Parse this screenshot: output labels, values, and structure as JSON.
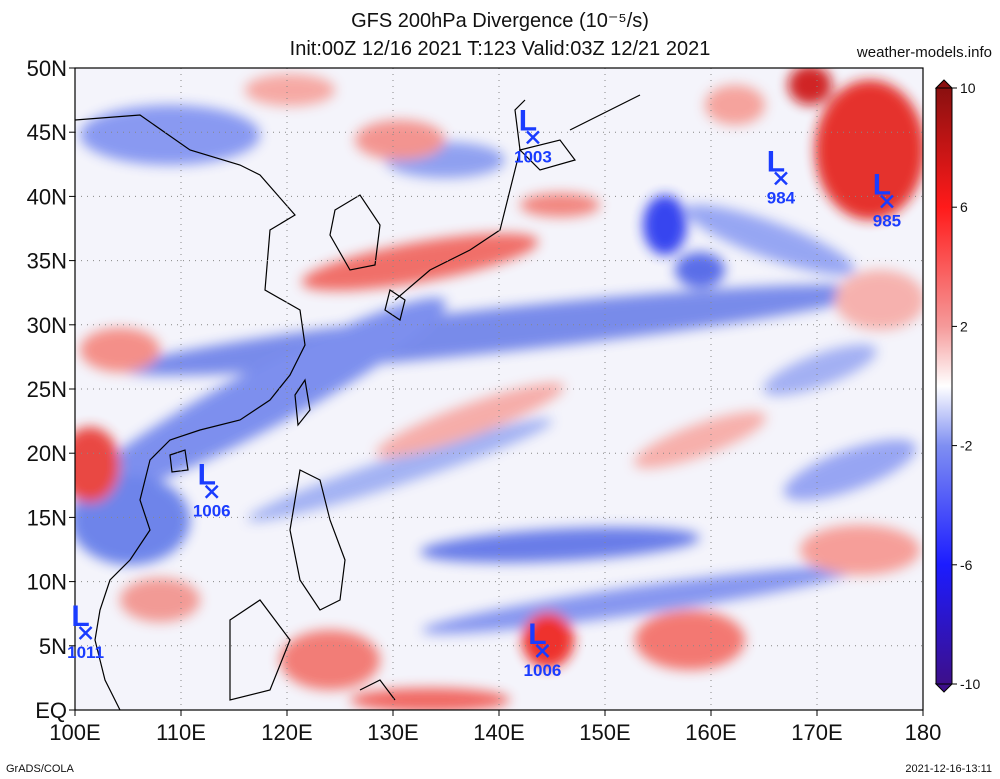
{
  "title": {
    "line1": "GFS 200hPa Divergence (10⁻⁵/s)",
    "line2": "Init:00Z 12/16 2021 T:123 Valid:03Z 12/21 2021"
  },
  "site": "weather-models.info",
  "credit": "GrADS/COLA",
  "timestamp": "2021-12-16-13:11",
  "map": {
    "lon_range": [
      100,
      180
    ],
    "lat_range": [
      0,
      50
    ],
    "lon_ticks": [
      {
        "v": 100,
        "label": "100E"
      },
      {
        "v": 110,
        "label": "110E"
      },
      {
        "v": 120,
        "label": "120E"
      },
      {
        "v": 130,
        "label": "130E"
      },
      {
        "v": 140,
        "label": "140E"
      },
      {
        "v": 150,
        "label": "150E"
      },
      {
        "v": 160,
        "label": "160E"
      },
      {
        "v": 170,
        "label": "170E"
      },
      {
        "v": 180,
        "label": "180"
      }
    ],
    "lat_ticks": [
      {
        "v": 0,
        "label": "EQ"
      },
      {
        "v": 5,
        "label": "5N"
      },
      {
        "v": 10,
        "label": "10N"
      },
      {
        "v": 15,
        "label": "15N"
      },
      {
        "v": 20,
        "label": "20N"
      },
      {
        "v": 25,
        "label": "25N"
      },
      {
        "v": 30,
        "label": "30N"
      },
      {
        "v": 35,
        "label": "35N"
      },
      {
        "v": 40,
        "label": "40N"
      },
      {
        "v": 45,
        "label": "45N"
      },
      {
        "v": 50,
        "label": "50N"
      }
    ],
    "gridlines": "dotted",
    "coastline_color": "#000000"
  },
  "lows": [
    {
      "letter": "L",
      "value": "1003",
      "lon": 143.2,
      "lat": 44.6
    },
    {
      "letter": "L",
      "value": "984",
      "lon": 166.6,
      "lat": 41.4
    },
    {
      "letter": "L",
      "value": "985",
      "lon": 176.6,
      "lat": 39.6
    },
    {
      "letter": "L",
      "value": "1006",
      "lon": 112.9,
      "lat": 17.0
    },
    {
      "letter": "L",
      "value": "1011",
      "lon": 101.0,
      "lat": 6.0
    },
    {
      "letter": "L",
      "value": "1006",
      "lon": 144.1,
      "lat": 4.6
    }
  ],
  "colorbar": {
    "labels": [
      {
        "v": 10,
        "label": "10"
      },
      {
        "v": 6,
        "label": "6"
      },
      {
        "v": 2,
        "label": "2"
      },
      {
        "v": -2,
        "label": "-2"
      },
      {
        "v": -6,
        "label": "-6"
      },
      {
        "v": -10,
        "label": "-10"
      }
    ],
    "range": [
      -10,
      10
    ],
    "stops": [
      "#3d0f8a",
      "#1c1cff",
      "#7f8ff2",
      "#ffffff",
      "#f59a9a",
      "#ff1a1a",
      "#8a1010"
    ]
  },
  "colors": {
    "low_marker": "#1a3cff",
    "divergence_positive": "#f2403a",
    "divergence_negative": "#3a5df0"
  }
}
